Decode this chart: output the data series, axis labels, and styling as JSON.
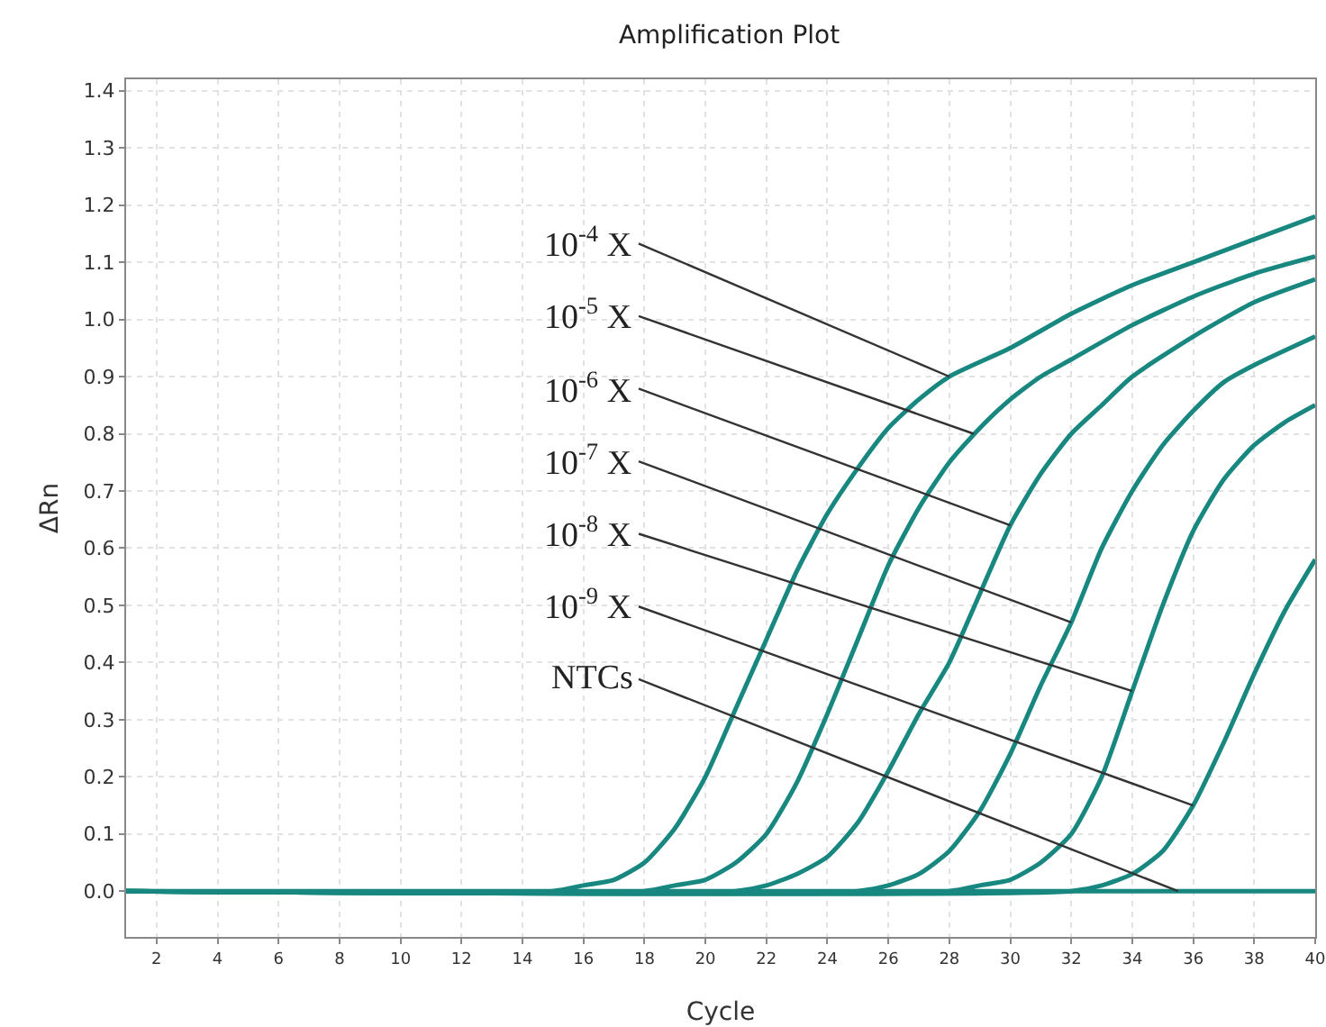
{
  "chart_data": {
    "type": "line",
    "title": "Amplification Plot",
    "xlabel": "Cycle",
    "ylabel": "ΔRn",
    "xlim": [
      1,
      40
    ],
    "ylim": [
      -0.08,
      1.42
    ],
    "xticks": [
      2,
      4,
      6,
      8,
      10,
      12,
      14,
      16,
      18,
      20,
      22,
      24,
      26,
      28,
      30,
      32,
      34,
      36,
      38,
      40
    ],
    "yticks": [
      {
        "value": 0,
        "label": "0.0"
      },
      0.1,
      0.2,
      0.3,
      0.4,
      0.5,
      0.6,
      0.7,
      0.8,
      0.9,
      {
        "value": 1,
        "label": "1.0"
      },
      1.1,
      1.2,
      1.3,
      1.4
    ],
    "grid": true,
    "marker": "none",
    "line_style": "solid",
    "series": [
      {
        "color": "#17877f",
        "x": [
          1,
          15,
          16,
          17,
          18,
          19,
          20,
          21,
          22,
          23,
          24,
          25,
          26,
          27,
          28,
          30,
          32,
          34,
          36,
          38,
          40
        ],
        "values": [
          0,
          0,
          0.01,
          0.02,
          0.05,
          0.11,
          0.2,
          0.32,
          0.44,
          0.56,
          0.66,
          0.74,
          0.81,
          0.86,
          0.9,
          0.95,
          1.01,
          1.06,
          1.1,
          1.14,
          1.18
        ]
      },
      {
        "color": "#17877f",
        "x": [
          1,
          18,
          19,
          20,
          21,
          22,
          23,
          24,
          25,
          26,
          27,
          28,
          29,
          30,
          31,
          32,
          34,
          36,
          38,
          40
        ],
        "values": [
          0,
          0,
          0.01,
          0.02,
          0.05,
          0.1,
          0.19,
          0.31,
          0.44,
          0.57,
          0.67,
          0.75,
          0.81,
          0.86,
          0.9,
          0.93,
          0.99,
          1.04,
          1.08,
          1.11
        ]
      },
      {
        "color": "#17877f",
        "x": [
          1,
          21,
          22,
          23,
          24,
          25,
          26,
          27,
          28,
          29,
          30,
          31,
          32,
          33,
          34,
          36,
          38,
          40
        ],
        "values": [
          0,
          0,
          0.01,
          0.03,
          0.06,
          0.12,
          0.21,
          0.31,
          0.4,
          0.52,
          0.64,
          0.73,
          0.8,
          0.85,
          0.9,
          0.97,
          1.03,
          1.07
        ]
      },
      {
        "color": "#17877f",
        "x": [
          1,
          25,
          26,
          27,
          28,
          29,
          30,
          31,
          32,
          33,
          34,
          35,
          36,
          37,
          38,
          40
        ],
        "values": [
          0,
          0,
          0.01,
          0.03,
          0.07,
          0.14,
          0.24,
          0.36,
          0.47,
          0.6,
          0.7,
          0.78,
          0.84,
          0.89,
          0.92,
          0.97
        ]
      },
      {
        "color": "#17877f",
        "x": [
          1,
          28,
          29,
          30,
          31,
          32,
          33,
          34,
          35,
          36,
          37,
          38,
          39,
          40
        ],
        "values": [
          0,
          0,
          0.01,
          0.02,
          0.05,
          0.1,
          0.2,
          0.35,
          0.5,
          0.63,
          0.72,
          0.78,
          0.82,
          0.85
        ]
      },
      {
        "color": "#17877f",
        "x": [
          1,
          32,
          33,
          34,
          35,
          36,
          37,
          38,
          39,
          40
        ],
        "values": [
          0,
          0,
          0.01,
          0.03,
          0.07,
          0.15,
          0.26,
          0.38,
          0.49,
          0.58
        ]
      },
      {
        "color": "#17877f",
        "x": [
          1,
          40
        ],
        "values": [
          0,
          0
        ]
      }
    ],
    "annotations": [
      {
        "text": "10$^{-4}$ X",
        "x": 28,
        "y": 0.9
      },
      {
        "text": "10$^{-5}$ X",
        "x": 28.8,
        "y": 0.8
      },
      {
        "text": "10$^{-6}$ X",
        "x": 30,
        "y": 0.64
      },
      {
        "text": "10$^{-7}$ X",
        "x": 32,
        "y": 0.47
      },
      {
        "text": "10$^{-8}$ X",
        "x": 34,
        "y": 0.35
      },
      {
        "text": "10$^{-9}$ X",
        "x": 36,
        "y": 0.15
      },
      {
        "text": "NTCs",
        "x": 35.5,
        "y": 0
      }
    ]
  }
}
